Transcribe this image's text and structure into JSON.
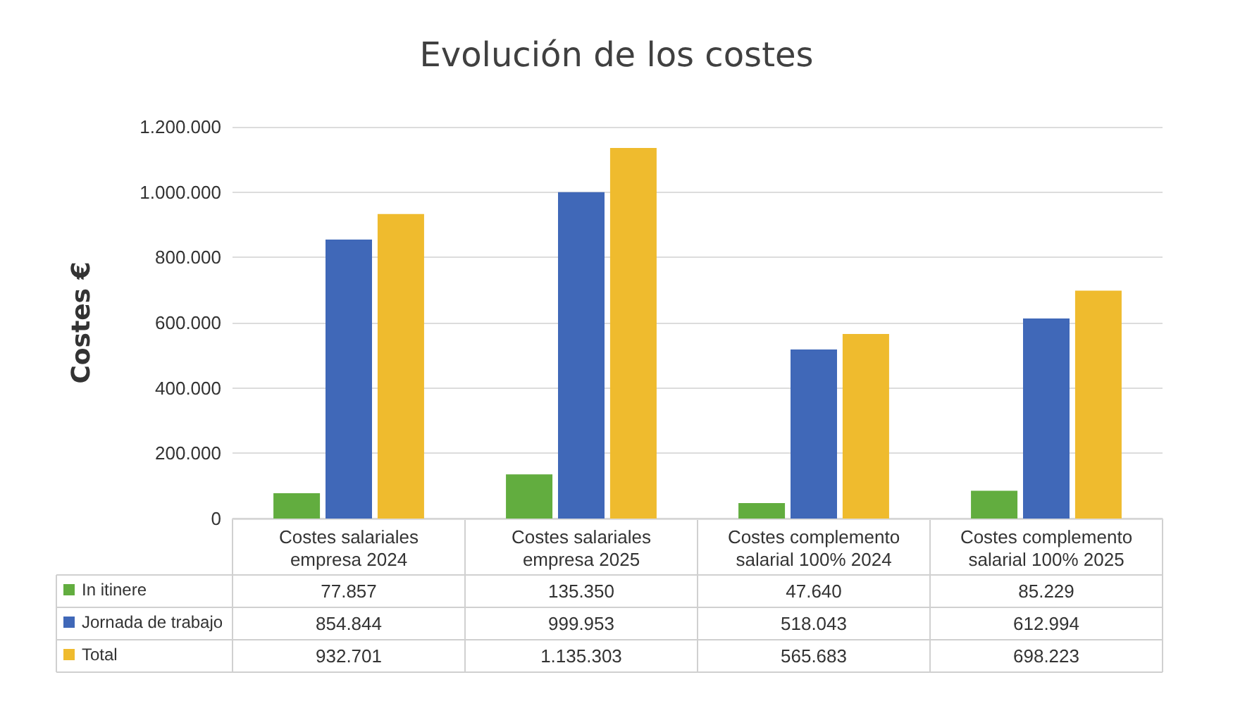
{
  "chart_data": {
    "type": "bar",
    "title": "Evolución de los costes",
    "ylabel": "Costes €",
    "categories": [
      "Costes salariales\nempresa 2024",
      "Costes salariales\nempresa 2025",
      "Costes complemento\nsalarial 100% 2024",
      "Costes complemento\nsalarial 100% 2025"
    ],
    "series": [
      {
        "name": "In itinere",
        "color": "#62ad3f",
        "values": [
          77857,
          135350,
          47640,
          85229
        ],
        "value_labels": [
          "77.857",
          "135.350",
          "47.640",
          "85.229"
        ]
      },
      {
        "name": "Jornada de trabajo",
        "color": "#4068b8",
        "values": [
          854844,
          999953,
          518043,
          612994
        ],
        "value_labels": [
          "854.844",
          "999.953",
          "518.043",
          "612.994"
        ]
      },
      {
        "name": "Total",
        "color": "#efbb2e",
        "values": [
          932701,
          1135303,
          565683,
          698223
        ],
        "value_labels": [
          "932.701",
          "1.135.303",
          "565.683",
          "698.223"
        ]
      }
    ],
    "ylim": [
      0,
      1200000
    ],
    "yticks": [
      {
        "value": 0,
        "label": "0"
      },
      {
        "value": 200000,
        "label": "200.000"
      },
      {
        "value": 400000,
        "label": "400.000"
      },
      {
        "value": 600000,
        "label": "600.000"
      },
      {
        "value": 800000,
        "label": "800.000"
      },
      {
        "value": 1000000,
        "label": "1.000.000"
      },
      {
        "value": 1200000,
        "label": "1.200.000"
      }
    ],
    "grid": "y",
    "legend": "bottom left"
  }
}
